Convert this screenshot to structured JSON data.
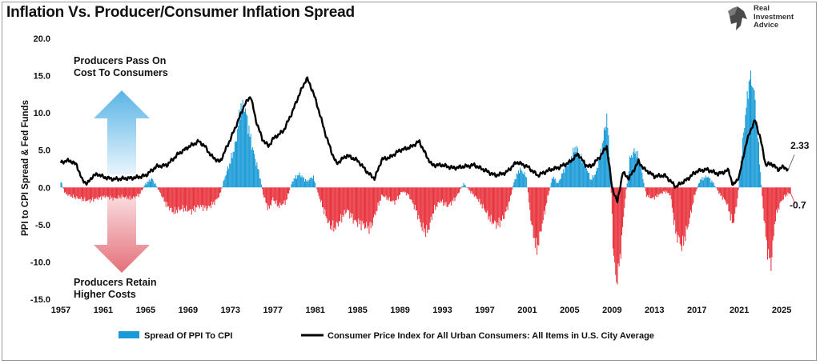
{
  "header": {
    "title": "Inflation Vs. Producer/Consumer Inflation Spread"
  },
  "logo": {
    "line1": "Real",
    "line2": "Investment",
    "line3": "Advice"
  },
  "chart_data": {
    "type": "bar+line",
    "title": "Inflation Vs. Producer/Consumer Inflation Spread",
    "ylabel": "PPI to CPI Spread & Fed Funds",
    "ylim": [
      -15,
      20
    ],
    "xlim": [
      1957,
      2026.5
    ],
    "yticks": [
      "20.0",
      "15.0",
      "10.0",
      "5.0",
      "0.0",
      "-5.0",
      "-10.0",
      "-15.0"
    ],
    "ytick_values": [
      20,
      15,
      10,
      5,
      0,
      -5,
      -10,
      -15
    ],
    "xticks": [
      "1957",
      "1961",
      "1965",
      "1969",
      "1973",
      "1977",
      "1981",
      "1985",
      "1989",
      "1993",
      "1997",
      "2001",
      "2005",
      "2009",
      "2013",
      "2017",
      "2021",
      "2025"
    ],
    "colors": {
      "positive_bar": "#1a9bd7",
      "negative_bar": "#e8323c",
      "cpi_line": "#000000",
      "arrow_up": "#6fc0ea",
      "arrow_down": "#e88088",
      "last_value_red": "#e8323c"
    },
    "annotations": {
      "top": [
        "Producers Pass On",
        "Cost To Consumers"
      ],
      "bottom": [
        "Producers Retain",
        "Higher Costs"
      ],
      "cpi_last": "2.33",
      "spread_last": "-0.7"
    },
    "legend": [
      "Spread Of PPI To CPI",
      "Consumer Price Index for All Urban Consumers: All Items in U.S. City Average"
    ],
    "spread_series": {
      "name": "Spread Of PPI To CPI",
      "keyframes": [
        [
          1957.0,
          0.8
        ],
        [
          1957.4,
          -0.8
        ],
        [
          1958.0,
          -1.2
        ],
        [
          1958.8,
          -1.5
        ],
        [
          1959.6,
          -1.8
        ],
        [
          1960.4,
          -1.5
        ],
        [
          1961.2,
          -1.2
        ],
        [
          1962.0,
          -1.5
        ],
        [
          1962.8,
          -1.2
        ],
        [
          1963.6,
          -1.5
        ],
        [
          1964.4,
          -1.0
        ],
        [
          1965.0,
          0.5
        ],
        [
          1965.6,
          1.2
        ],
        [
          1966.3,
          -0.5
        ],
        [
          1966.9,
          -2.2
        ],
        [
          1967.6,
          -3.3
        ],
        [
          1968.5,
          -2.8
        ],
        [
          1969.3,
          -3.2
        ],
        [
          1970.0,
          -2.5
        ],
        [
          1970.8,
          -2.8
        ],
        [
          1971.5,
          -2.0
        ],
        [
          1972.0,
          -1.0
        ],
        [
          1972.5,
          1.5
        ],
        [
          1973.0,
          3.5
        ],
        [
          1973.5,
          6.0
        ],
        [
          1974.0,
          11.0
        ],
        [
          1974.4,
          10.5
        ],
        [
          1974.9,
          6.5
        ],
        [
          1975.3,
          4.0
        ],
        [
          1975.7,
          2.0
        ],
        [
          1976.1,
          -1.0
        ],
        [
          1976.6,
          -3.0
        ],
        [
          1977.0,
          -1.5
        ],
        [
          1977.5,
          -2.5
        ],
        [
          1978.2,
          -2.0
        ],
        [
          1978.9,
          1.0
        ],
        [
          1979.5,
          1.8
        ],
        [
          1980.2,
          0.8
        ],
        [
          1980.8,
          1.5
        ],
        [
          1981.3,
          -1.0
        ],
        [
          1981.8,
          -3.0
        ],
        [
          1982.3,
          -5.0
        ],
        [
          1982.8,
          -5.5
        ],
        [
          1983.3,
          -4.5
        ],
        [
          1984.0,
          -3.0
        ],
        [
          1984.7,
          -4.5
        ],
        [
          1985.5,
          -5.0
        ],
        [
          1986.2,
          -5.5
        ],
        [
          1986.8,
          -3.0
        ],
        [
          1987.3,
          -1.0
        ],
        [
          1987.8,
          -1.5
        ],
        [
          1988.5,
          -2.0
        ],
        [
          1989.2,
          -0.5
        ],
        [
          1989.8,
          -1.0
        ],
        [
          1990.5,
          -3.0
        ],
        [
          1991.1,
          -5.5
        ],
        [
          1991.6,
          -6.0
        ],
        [
          1992.2,
          -3.0
        ],
        [
          1992.8,
          -1.8
        ],
        [
          1993.5,
          -2.5
        ],
        [
          1994.2,
          -1.5
        ],
        [
          1995.0,
          0.5
        ],
        [
          1995.6,
          -0.5
        ],
        [
          1996.3,
          -1.5
        ],
        [
          1997.0,
          -3.0
        ],
        [
          1997.6,
          -4.5
        ],
        [
          1998.2,
          -5.0
        ],
        [
          1998.8,
          -4.0
        ],
        [
          1999.3,
          -2.0
        ],
        [
          1999.8,
          1.0
        ],
        [
          2000.3,
          2.5
        ],
        [
          2000.9,
          1.5
        ],
        [
          2001.4,
          -5.0
        ],
        [
          2001.9,
          -8.5
        ],
        [
          2002.4,
          -5.0
        ],
        [
          2002.9,
          -1.5
        ],
        [
          2003.4,
          1.5
        ],
        [
          2003.9,
          0.5
        ],
        [
          2004.5,
          2.5
        ],
        [
          2005.0,
          3.5
        ],
        [
          2005.6,
          5.5
        ],
        [
          2006.0,
          4.0
        ],
        [
          2006.5,
          3.0
        ],
        [
          2007.0,
          1.0
        ],
        [
          2007.5,
          2.0
        ],
        [
          2008.0,
          5.0
        ],
        [
          2008.5,
          9.5
        ],
        [
          2008.8,
          4.0
        ],
        [
          2009.1,
          -8.0
        ],
        [
          2009.4,
          -13.0
        ],
        [
          2009.8,
          -9.0
        ],
        [
          2010.2,
          -2.0
        ],
        [
          2010.7,
          4.0
        ],
        [
          2011.2,
          5.0
        ],
        [
          2011.7,
          3.0
        ],
        [
          2012.2,
          -1.0
        ],
        [
          2012.8,
          -1.5
        ],
        [
          2013.4,
          -1.0
        ],
        [
          2014.0,
          -0.5
        ],
        [
          2014.5,
          -1.0
        ],
        [
          2015.0,
          -6.0
        ],
        [
          2015.6,
          -8.0
        ],
        [
          2016.2,
          -5.0
        ],
        [
          2016.8,
          -1.0
        ],
        [
          2017.3,
          1.0
        ],
        [
          2018.0,
          1.5
        ],
        [
          2018.6,
          0.5
        ],
        [
          2019.2,
          -1.0
        ],
        [
          2019.8,
          -2.0
        ],
        [
          2020.4,
          -5.0
        ],
        [
          2020.8,
          -2.0
        ],
        [
          2021.2,
          4.0
        ],
        [
          2021.6,
          10.0
        ],
        [
          2022.0,
          15.0
        ],
        [
          2022.4,
          13.0
        ],
        [
          2022.8,
          6.0
        ],
        [
          2023.2,
          -2.0
        ],
        [
          2023.6,
          -8.0
        ],
        [
          2024.0,
          -10.5
        ],
        [
          2024.4,
          -4.0
        ],
        [
          2024.9,
          -2.0
        ],
        [
          2025.4,
          -1.0
        ],
        [
          2025.9,
          -0.7
        ]
      ]
    },
    "cpi_series": {
      "name": "Consumer Price Index for All Urban Consumers: All Items in U.S. City Average",
      "keyframes": [
        [
          1957.0,
          3.3
        ],
        [
          1957.5,
          3.6
        ],
        [
          1958.0,
          3.5
        ],
        [
          1958.5,
          3.0
        ],
        [
          1959.0,
          1.0
        ],
        [
          1959.5,
          0.5
        ],
        [
          1960.0,
          1.5
        ],
        [
          1960.5,
          1.8
        ],
        [
          1961.0,
          1.4
        ],
        [
          1962.0,
          1.1
        ],
        [
          1963.0,
          1.2
        ],
        [
          1964.0,
          1.3
        ],
        [
          1965.0,
          1.6
        ],
        [
          1966.0,
          2.8
        ],
        [
          1967.0,
          3.0
        ],
        [
          1968.0,
          4.4
        ],
        [
          1969.0,
          5.4
        ],
        [
          1970.0,
          6.2
        ],
        [
          1970.6,
          5.5
        ],
        [
          1971.2,
          4.2
        ],
        [
          1972.0,
          3.4
        ],
        [
          1973.0,
          6.5
        ],
        [
          1973.6,
          8.5
        ],
        [
          1974.3,
          11.0
        ],
        [
          1974.9,
          12.3
        ],
        [
          1975.4,
          9.0
        ],
        [
          1976.0,
          6.5
        ],
        [
          1976.6,
          5.5
        ],
        [
          1977.0,
          6.5
        ],
        [
          1978.0,
          7.6
        ],
        [
          1978.8,
          10.0
        ],
        [
          1979.5,
          12.5
        ],
        [
          1980.2,
          14.7
        ],
        [
          1980.8,
          12.8
        ],
        [
          1981.4,
          10.0
        ],
        [
          1982.0,
          7.0
        ],
        [
          1982.6,
          4.5
        ],
        [
          1983.0,
          3.2
        ],
        [
          1984.0,
          4.3
        ],
        [
          1985.0,
          3.6
        ],
        [
          1986.0,
          1.9
        ],
        [
          1986.6,
          1.2
        ],
        [
          1987.3,
          3.8
        ],
        [
          1988.0,
          4.0
        ],
        [
          1989.0,
          5.0
        ],
        [
          1990.0,
          5.4
        ],
        [
          1990.8,
          6.2
        ],
        [
          1991.5,
          4.2
        ],
        [
          1992.0,
          3.0
        ],
        [
          1993.0,
          3.0
        ],
        [
          1994.0,
          2.6
        ],
        [
          1995.0,
          2.8
        ],
        [
          1996.0,
          3.0
        ],
        [
          1997.0,
          2.3
        ],
        [
          1998.0,
          1.6
        ],
        [
          1999.0,
          2.0
        ],
        [
          2000.0,
          3.4
        ],
        [
          2001.0,
          2.8
        ],
        [
          2002.0,
          1.6
        ],
        [
          2003.0,
          2.3
        ],
        [
          2004.0,
          2.7
        ],
        [
          2005.0,
          3.4
        ],
        [
          2005.8,
          4.5
        ],
        [
          2006.5,
          3.0
        ],
        [
          2007.0,
          2.8
        ],
        [
          2007.8,
          4.0
        ],
        [
          2008.5,
          5.5
        ],
        [
          2009.0,
          0.0
        ],
        [
          2009.5,
          -2.0
        ],
        [
          2010.0,
          2.0
        ],
        [
          2010.6,
          1.2
        ],
        [
          2011.5,
          3.5
        ],
        [
          2012.0,
          2.5
        ],
        [
          2013.0,
          1.5
        ],
        [
          2014.0,
          1.6
        ],
        [
          2015.0,
          0.1
        ],
        [
          2016.0,
          1.0
        ],
        [
          2017.0,
          2.2
        ],
        [
          2018.0,
          2.4
        ],
        [
          2019.0,
          1.8
        ],
        [
          2020.0,
          2.3
        ],
        [
          2020.4,
          0.2
        ],
        [
          2021.0,
          1.5
        ],
        [
          2021.5,
          5.0
        ],
        [
          2022.0,
          7.5
        ],
        [
          2022.5,
          9.0
        ],
        [
          2023.0,
          6.5
        ],
        [
          2023.5,
          3.0
        ],
        [
          2024.0,
          3.2
        ],
        [
          2024.7,
          2.4
        ],
        [
          2025.2,
          2.8
        ],
        [
          2025.6,
          2.33
        ]
      ]
    }
  }
}
